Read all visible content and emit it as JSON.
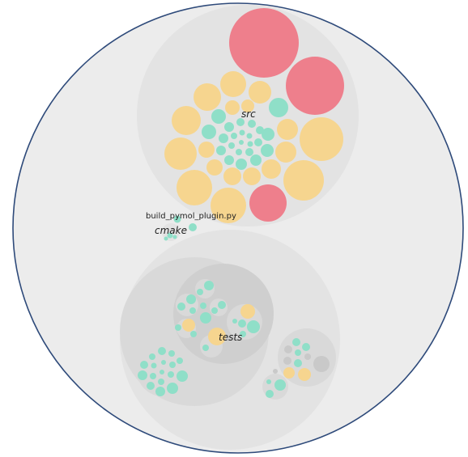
{
  "diagram": {
    "type": "circle-packing",
    "colors": {
      "outline": "#2e4a7a",
      "root_fill": "#ececec",
      "group_fill": "#e3e3e3",
      "subgroup_fill": "#d9d9d9",
      "inner_fill": "#cfcfcf",
      "red": "#ee7f8c",
      "yellow": "#f6d58f",
      "green": "#8fdfc8",
      "grey": "#c9c9c9"
    },
    "labels": {
      "src": "src",
      "cmake": "cmake",
      "tests": "tests",
      "build_file": "build_pymol_plugin.py"
    }
  }
}
